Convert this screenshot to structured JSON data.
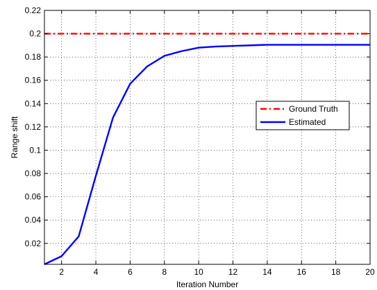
{
  "chart_data": {
    "type": "line",
    "title": "",
    "xlabel": "Iteration Number",
    "ylabel": "Range shift",
    "xlim": [
      1,
      20
    ],
    "ylim": [
      0.002,
      0.22
    ],
    "xticks": [
      2,
      4,
      6,
      8,
      10,
      12,
      14,
      16,
      18,
      20
    ],
    "yticks": [
      0.02,
      0.04,
      0.06,
      0.08,
      0.1,
      0.12,
      0.14,
      0.16,
      0.18,
      0.2,
      0.22
    ],
    "ytick_labels": [
      "0.02",
      "0.04",
      "0.06",
      "0.08",
      "0.1",
      "0.12",
      "0.14",
      "0.16",
      "0.18",
      "0.2",
      "0.22"
    ],
    "grid": true,
    "legend_position": "right",
    "series": [
      {
        "name": "Ground Truth",
        "color": "#ff0000",
        "style": "dash-dot",
        "x": [
          1,
          20
        ],
        "y": [
          0.2,
          0.2
        ]
      },
      {
        "name": "Estimated",
        "color": "#0000ff",
        "style": "solid",
        "x": [
          1,
          2,
          3,
          4,
          5,
          6,
          7,
          8,
          9,
          10,
          11,
          12,
          13,
          14,
          15,
          16,
          17,
          18,
          19,
          20
        ],
        "y": [
          0.002,
          0.009,
          0.026,
          0.078,
          0.128,
          0.157,
          0.172,
          0.181,
          0.185,
          0.188,
          0.189,
          0.1895,
          0.19,
          0.1905,
          0.1905,
          0.1905,
          0.1905,
          0.1905,
          0.1905,
          0.1905
        ]
      }
    ]
  }
}
